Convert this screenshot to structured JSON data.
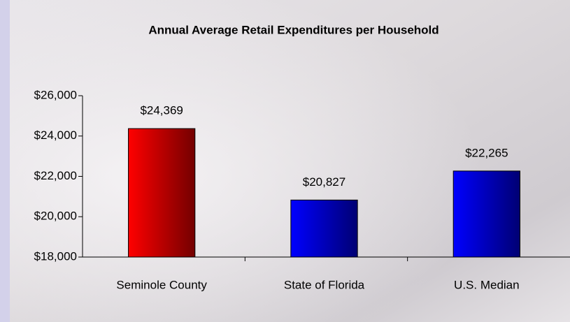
{
  "chart_data": {
    "type": "bar",
    "title": "Annual Average Retail Expenditures per Household",
    "categories": [
      "Seminole County",
      "State of Florida",
      "U.S. Median"
    ],
    "values": [
      24369,
      20827,
      22265
    ],
    "value_labels": [
      "$24,369",
      "$20,827",
      "$22,265"
    ],
    "colors": [
      "#ff0000",
      "#0000ff",
      "#0000ff"
    ],
    "ylim": [
      18000,
      26000
    ],
    "yticks": [
      {
        "value": 18000,
        "label": "$18,000"
      },
      {
        "value": 20000,
        "label": "$20,000"
      },
      {
        "value": 22000,
        "label": "$22,000"
      },
      {
        "value": 24000,
        "label": "$24,000"
      },
      {
        "value": 26000,
        "label": "$26,000"
      }
    ],
    "grid": false
  }
}
